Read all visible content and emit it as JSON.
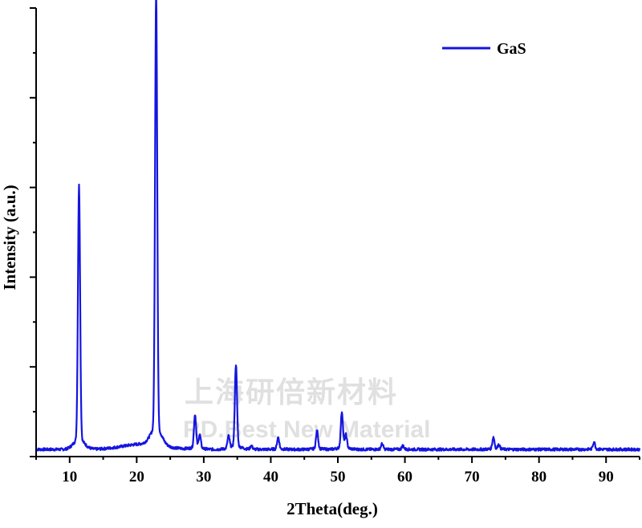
{
  "chart_data": {
    "type": "line",
    "title": "",
    "xlabel": "2Theta(deg.)",
    "ylabel": "Intensity (a.u.)",
    "xlim": [
      5,
      95
    ],
    "ylim": [
      0,
      100
    ],
    "x_ticks": [
      10,
      20,
      30,
      40,
      50,
      60,
      70,
      80,
      90
    ],
    "y_tick_labels_shown": false,
    "grid": false,
    "legend": {
      "position": "top-right",
      "entries": [
        "GaS"
      ]
    },
    "series": [
      {
        "name": "GaS",
        "color": "#1515e0",
        "baseline": 1.6,
        "peaks": [
          {
            "x": 11.4,
            "height": 56.6
          },
          {
            "x": 22.9,
            "height": 97.4
          },
          {
            "x": 28.7,
            "height": 7.4
          },
          {
            "x": 29.4,
            "height": 3.0
          },
          {
            "x": 33.7,
            "height": 2.6
          },
          {
            "x": 34.8,
            "height": 18.2
          },
          {
            "x": 37.1,
            "height": 0.8
          },
          {
            "x": 41.1,
            "height": 2.6
          },
          {
            "x": 46.9,
            "height": 4.0
          },
          {
            "x": 50.6,
            "height": 8.0
          },
          {
            "x": 51.2,
            "height": 3.0
          },
          {
            "x": 56.6,
            "height": 1.2
          },
          {
            "x": 59.7,
            "height": 0.8
          },
          {
            "x": 73.2,
            "height": 2.6
          },
          {
            "x": 74.0,
            "height": 1.0
          },
          {
            "x": 88.2,
            "height": 1.6
          }
        ]
      }
    ]
  },
  "watermark": {
    "cn": "上海研倍新材料",
    "en": "RD.Best New Material"
  }
}
